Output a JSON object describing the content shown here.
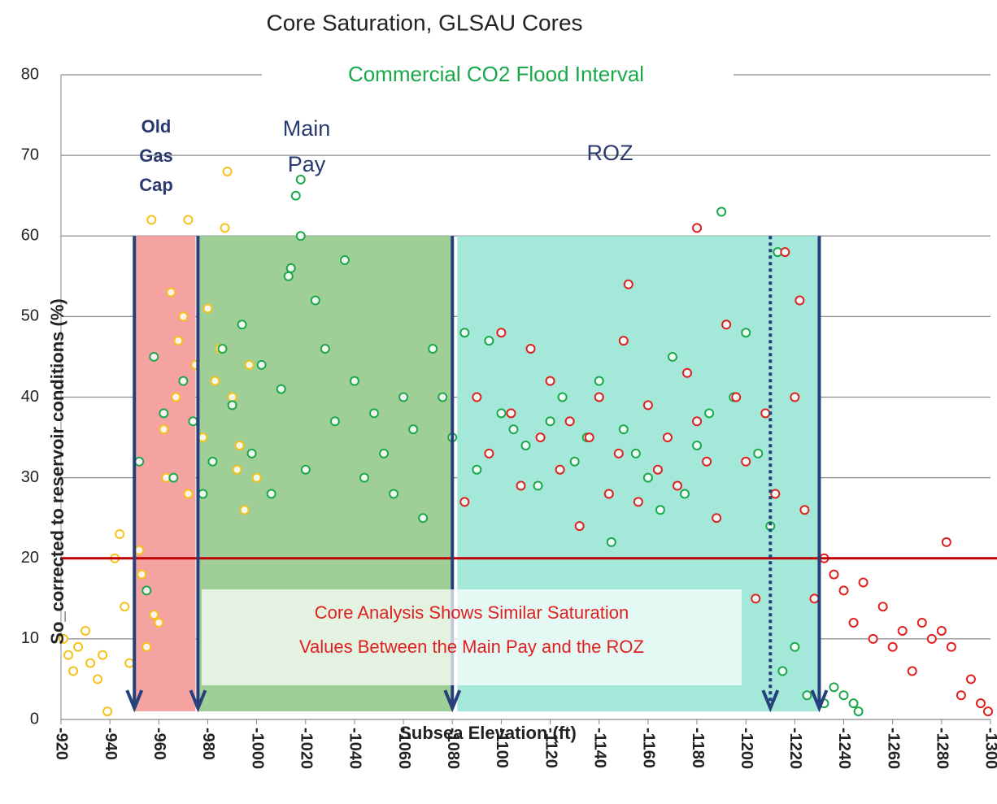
{
  "chart_data": {
    "type": "scatter",
    "title": "Core Saturation, GLSAU Cores",
    "x_label": "Subsea Elevation (ft)",
    "y_label": "So_corrected to reservoir conditions (%)",
    "xlim": [
      -920,
      -1300
    ],
    "xticks": [
      -920,
      -940,
      -960,
      -980,
      -1000,
      -1020,
      -1040,
      -1060,
      -1080,
      -1100,
      -1120,
      -1140,
      -1160,
      -1180,
      -1200,
      -1220,
      -1240,
      -1260,
      -1280,
      -1300
    ],
    "ylim": [
      0,
      80
    ],
    "yticks": [
      0,
      10,
      20,
      30,
      40,
      50,
      60,
      70,
      80
    ],
    "grid": true,
    "annotations": {
      "flood_interval": "Commercial CO2 Flood Interval",
      "old_gas_cap": [
        "Old",
        "Gas",
        "Cap"
      ],
      "main_pay": [
        "Main",
        "Pay"
      ],
      "roz": "ROZ",
      "callout": [
        "Core Analysis Shows Similar Saturation",
        "Values Between the Main Pay and the ROZ"
      ]
    },
    "bands": [
      {
        "from": -950,
        "to": -975,
        "bottom": 1,
        "top": 60,
        "color": "#f4a3a0"
      },
      {
        "from": -976,
        "to": -1080,
        "bottom": 1,
        "top": 60,
        "color": "#9fcf96"
      },
      {
        "from": -1082,
        "to": -1230,
        "bottom": 1,
        "top": 60,
        "color": "#a3e8d8"
      }
    ],
    "arrows": [
      {
        "x": -950,
        "top": 60,
        "bottom": 1,
        "style": "solid"
      },
      {
        "x": -976,
        "top": 60,
        "bottom": 1,
        "style": "solid"
      },
      {
        "x": -1080,
        "top": 60,
        "bottom": 1,
        "style": "solid"
      },
      {
        "x": -1210,
        "top": 60,
        "bottom": 1,
        "style": "dotted"
      },
      {
        "x": -1230,
        "top": 60,
        "bottom": 1,
        "style": "solid"
      }
    ],
    "hline": {
      "value": 20,
      "color": "#c00000"
    },
    "series": [
      {
        "color": "#f5c21b",
        "x": [
          -921,
          -923,
          -925,
          -927,
          -930,
          -932,
          -935,
          -937,
          -939,
          -942,
          -944,
          -946,
          -948,
          -952,
          -955,
          -958,
          -960,
          -963,
          -965,
          -968,
          -970,
          -972,
          -975,
          -978,
          -980,
          -983,
          -985,
          -988,
          -990,
          -992,
          -995,
          -997,
          -1000,
          -957,
          -962,
          -967,
          -972,
          -987,
          -993,
          -953
        ],
        "values": [
          10,
          8,
          6,
          9,
          11,
          7,
          5,
          8,
          1,
          20,
          23,
          14,
          7,
          21,
          9,
          13,
          12,
          30,
          53,
          47,
          50,
          28,
          44,
          35,
          51,
          42,
          46,
          68,
          40,
          31,
          26,
          44,
          30,
          62,
          36,
          40,
          62,
          61,
          34,
          18
        ]
      },
      {
        "color": "#1aa84a",
        "x": [
          -952,
          -955,
          -958,
          -962,
          -966,
          -970,
          -974,
          -978,
          -982,
          -986,
          -990,
          -994,
          -998,
          -1002,
          -1006,
          -1010,
          -1013,
          -1016,
          -1018,
          -1020,
          -1024,
          -1028,
          -1032,
          -1036,
          -1040,
          -1044,
          -1048,
          -1052,
          -1056,
          -1060,
          -1064,
          -1068,
          -1072,
          -1076,
          -1080,
          -1085,
          -1090,
          -1095,
          -1100,
          -1105,
          -1110,
          -1115,
          -1120,
          -1125,
          -1130,
          -1135,
          -1140,
          -1145,
          -1150,
          -1155,
          -1160,
          -1165,
          -1170,
          -1175,
          -1180,
          -1185,
          -1190,
          -1195,
          -1200,
          -1205,
          -1210,
          -1215,
          -1220,
          -1225,
          -1232,
          -1236,
          -1240,
          -1244,
          -1246,
          -1213,
          -1018,
          -1014
        ],
        "values": [
          32,
          16,
          45,
          38,
          30,
          42,
          37,
          28,
          32,
          46,
          39,
          49,
          33,
          44,
          28,
          41,
          55,
          65,
          60,
          31,
          52,
          46,
          37,
          57,
          42,
          30,
          38,
          33,
          28,
          40,
          36,
          25,
          46,
          40,
          35,
          48,
          31,
          47,
          38,
          36,
          34,
          29,
          37,
          40,
          32,
          35,
          42,
          22,
          36,
          33,
          30,
          26,
          45,
          28,
          34,
          38,
          63,
          40,
          48,
          33,
          24,
          6,
          9,
          3,
          2,
          4,
          3,
          2,
          1,
          58,
          67,
          56
        ]
      },
      {
        "color": "#e0201e",
        "x": [
          -1085,
          -1090,
          -1095,
          -1100,
          -1104,
          -1108,
          -1112,
          -1116,
          -1120,
          -1124,
          -1128,
          -1132,
          -1136,
          -1140,
          -1144,
          -1148,
          -1152,
          -1156,
          -1160,
          -1164,
          -1168,
          -1172,
          -1176,
          -1180,
          -1184,
          -1188,
          -1192,
          -1196,
          -1200,
          -1204,
          -1208,
          -1212,
          -1216,
          -1220,
          -1224,
          -1228,
          -1232,
          -1236,
          -1240,
          -1244,
          -1248,
          -1252,
          -1256,
          -1260,
          -1264,
          -1268,
          -1272,
          -1276,
          -1280,
          -1284,
          -1288,
          -1292,
          -1296,
          -1299,
          -1180,
          -1222,
          -1282,
          -1150
        ],
        "values": [
          27,
          40,
          33,
          48,
          38,
          29,
          46,
          35,
          42,
          31,
          37,
          24,
          35,
          40,
          28,
          33,
          54,
          27,
          39,
          31,
          35,
          29,
          43,
          61,
          32,
          25,
          49,
          40,
          32,
          15,
          38,
          28,
          58,
          40,
          26,
          15,
          20,
          18,
          16,
          12,
          17,
          10,
          14,
          9,
          11,
          6,
          12,
          10,
          11,
          9,
          3,
          5,
          2,
          1,
          37,
          52,
          22,
          47
        ]
      }
    ]
  }
}
